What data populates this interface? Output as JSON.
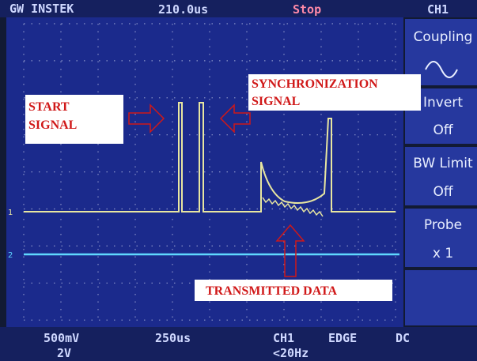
{
  "header": {
    "brand": "GW INSTEK",
    "timebase_position": "210.0us",
    "run_state": "Stop",
    "channel": "CH1"
  },
  "menu": {
    "items": [
      "Coupling",
      "Invert",
      "Off",
      "BW Limit",
      "Off",
      "Probe",
      "x 1"
    ]
  },
  "footer": {
    "ch1_scale": "500mV",
    "ch2_scale": "2V",
    "time_scale": "250us",
    "trigger_source": "CH1",
    "trigger_type": "EDGE",
    "trigger_coupling": "DC",
    "trigger_freq": "<20Hz"
  },
  "annotations": {
    "start_signal": [
      "START",
      "SIGNAL"
    ],
    "sync_signal": [
      "SYNCHRONIZATION",
      "SIGNAL"
    ],
    "transmitted_data": "TRANSMITTED DATA"
  }
}
